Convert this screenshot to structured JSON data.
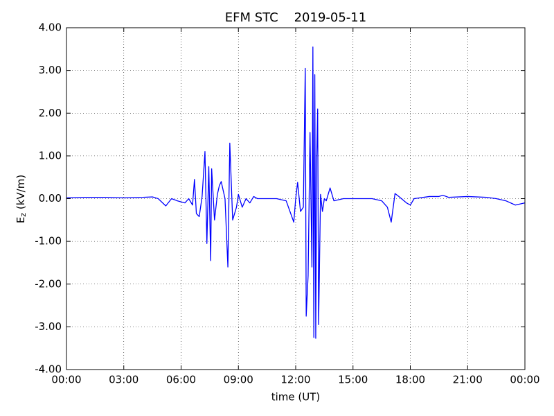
{
  "chart_data": {
    "type": "line",
    "title": "EFM STC    2019-05-11",
    "xlabel": "time (UT)",
    "ylabel": {
      "main": "E",
      "sub": "z",
      "rest": " (kV/m)"
    },
    "xlim": [
      0,
      24
    ],
    "xticks": [
      {
        "value": 0,
        "label": "00:00"
      },
      {
        "value": 3,
        "label": "03:00"
      },
      {
        "value": 6,
        "label": "06:00"
      },
      {
        "value": 9,
        "label": "09:00"
      },
      {
        "value": 12,
        "label": "12:00"
      },
      {
        "value": 15,
        "label": "15:00"
      },
      {
        "value": 18,
        "label": "18:00"
      },
      {
        "value": 21,
        "label": "21:00"
      },
      {
        "value": 24,
        "label": "00:00"
      }
    ],
    "ylim": [
      -4,
      4
    ],
    "yticks": [
      {
        "value": -4,
        "label": "-4.00"
      },
      {
        "value": -3,
        "label": "-3.00"
      },
      {
        "value": -2,
        "label": "-2.00"
      },
      {
        "value": -1,
        "label": "-1.00"
      },
      {
        "value": 0,
        "label": "0.00"
      },
      {
        "value": 1,
        "label": "1.00"
      },
      {
        "value": 2,
        "label": "2.00"
      },
      {
        "value": 3,
        "label": "3.00"
      },
      {
        "value": 4,
        "label": "4.00"
      }
    ],
    "grid": true,
    "series": [
      {
        "name": "Ez",
        "color": "#0000ff",
        "x": [
          0,
          1,
          2,
          3,
          4,
          4.5,
          4.8,
          5.2,
          5.5,
          5.8,
          6.2,
          6.4,
          6.6,
          6.7,
          6.8,
          6.95,
          7.1,
          7.25,
          7.35,
          7.45,
          7.55,
          7.6,
          7.75,
          7.9,
          8.0,
          8.1,
          8.3,
          8.45,
          8.55,
          8.7,
          8.9,
          9.0,
          9.2,
          9.4,
          9.6,
          9.8,
          10,
          11,
          11.5,
          11.9,
          12.0,
          12.1,
          12.25,
          12.4,
          12.5,
          12.55,
          12.65,
          12.75,
          12.85,
          12.9,
          12.95,
          13.0,
          13.05,
          13.1,
          13.15,
          13.2,
          13.3,
          13.4,
          13.5,
          13.6,
          13.8,
          14.0,
          14.5,
          15,
          16,
          16.5,
          16.8,
          17.0,
          17.2,
          17.4,
          17.8,
          18.0,
          18.2,
          19,
          19.5,
          19.7,
          20,
          21,
          22,
          22.5,
          23,
          23.5,
          23.8,
          24
        ],
        "values": [
          0.02,
          0.03,
          0.03,
          0.02,
          0.03,
          0.04,
          0.0,
          -0.17,
          0.0,
          -0.05,
          -0.1,
          0.0,
          -0.15,
          0.45,
          -0.35,
          -0.42,
          0.05,
          1.1,
          -1.05,
          0.75,
          -1.45,
          0.7,
          -0.5,
          0.1,
          0.3,
          0.4,
          0.0,
          -1.6,
          1.3,
          -0.5,
          -0.2,
          0.1,
          -0.2,
          0.0,
          -0.1,
          0.05,
          0.0,
          0.0,
          -0.05,
          -0.55,
          0.0,
          0.38,
          -0.3,
          -0.2,
          3.05,
          -2.75,
          -1.8,
          1.55,
          -1.6,
          3.55,
          -3.25,
          2.9,
          -3.27,
          0.95,
          2.1,
          -2.95,
          0.1,
          -0.3,
          0.0,
          -0.05,
          0.25,
          -0.05,
          0.0,
          0.0,
          0.0,
          -0.05,
          -0.2,
          -0.55,
          0.12,
          0.05,
          -0.1,
          -0.15,
          0.0,
          0.05,
          0.05,
          0.08,
          0.03,
          0.05,
          0.03,
          0.0,
          -0.05,
          -0.15,
          -0.12,
          -0.1
        ]
      }
    ]
  }
}
